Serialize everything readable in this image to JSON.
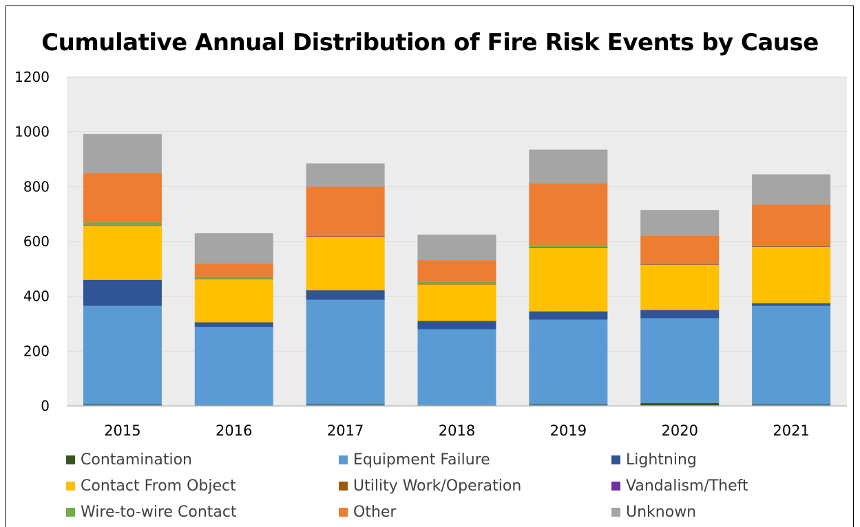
{
  "chart_data": {
    "type": "bar",
    "stacked": true,
    "title": "Cumulative Annual Distribution of Fire Risk Events by Cause",
    "categories": [
      "2015",
      "2016",
      "2017",
      "2018",
      "2019",
      "2020",
      "2021"
    ],
    "ylim": [
      0,
      1200
    ],
    "yticks": [
      0,
      200,
      400,
      600,
      800,
      1000,
      1200
    ],
    "grid": true,
    "legend_position": "bottom",
    "series": [
      {
        "name": "Contamination",
        "color": "#375623",
        "values": [
          5,
          3,
          5,
          3,
          5,
          10,
          5
        ]
      },
      {
        "name": "Equipment Failure",
        "color": "#5B9BD5",
        "values": [
          360,
          285,
          382,
          277,
          310,
          310,
          360
        ]
      },
      {
        "name": "Lightning",
        "color": "#2F5597",
        "values": [
          95,
          17,
          35,
          30,
          30,
          30,
          10
        ]
      },
      {
        "name": "Contact From Object",
        "color": "#FFC000",
        "values": [
          198,
          157,
          195,
          133,
          232,
          165,
          205
        ]
      },
      {
        "name": "Utility Work/Operation",
        "color": "#9C5A0B",
        "values": [
          2,
          2,
          2,
          2,
          2,
          2,
          2
        ]
      },
      {
        "name": "Vandalism/Theft",
        "color": "#7030A0",
        "values": [
          1,
          1,
          1,
          1,
          1,
          1,
          1
        ]
      },
      {
        "name": "Wire-to-wire Contact",
        "color": "#70AD47",
        "values": [
          9,
          5,
          3,
          6,
          3,
          2,
          2
        ]
      },
      {
        "name": "Other",
        "color": "#ED7D31",
        "values": [
          180,
          50,
          177,
          80,
          230,
          102,
          150
        ]
      },
      {
        "name": "Unknown",
        "color": "#A5A5A5",
        "values": [
          142,
          110,
          85,
          93,
          122,
          93,
          110
        ]
      }
    ]
  }
}
